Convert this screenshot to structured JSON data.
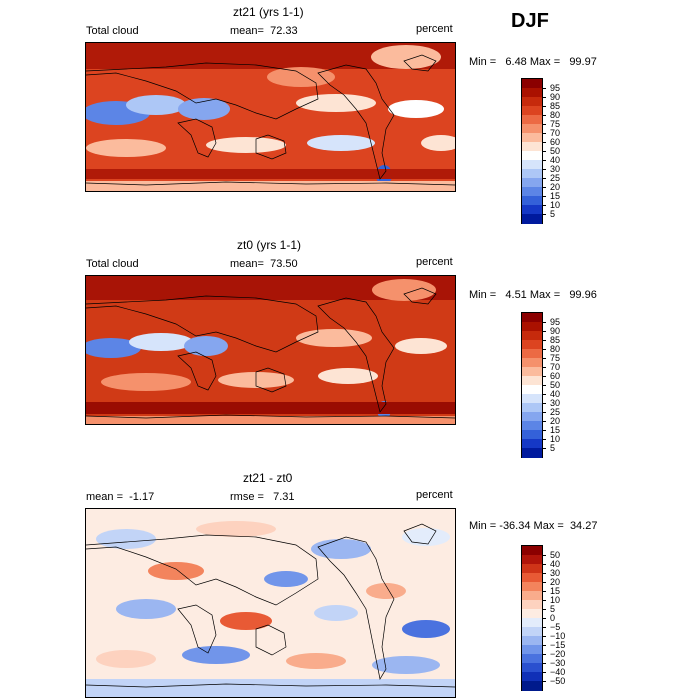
{
  "season": "DJF",
  "chart_data": [
    {
      "type": "heatmap",
      "title": "zt21 (yrs 1-1)",
      "variable": "Total cloud",
      "units": "percent",
      "mean_label": "mean=",
      "mean": "72.33",
      "min_label": "Min =",
      "min": "6.48",
      "max_label": "Max =",
      "max": "99.97",
      "colorbar": [
        "95",
        "90",
        "85",
        "80",
        "75",
        "70",
        "60",
        "50",
        "40",
        "30",
        "25",
        "20",
        "15",
        "10",
        "5"
      ]
    },
    {
      "type": "heatmap",
      "title": "zt0 (yrs 1-1)",
      "variable": "Total cloud",
      "units": "percent",
      "mean_label": "mean=",
      "mean": "73.50",
      "min_label": "Min =",
      "min": "4.51",
      "max_label": "Max =",
      "max": "99.96",
      "colorbar": [
        "95",
        "90",
        "85",
        "80",
        "75",
        "70",
        "60",
        "50",
        "40",
        "30",
        "25",
        "20",
        "15",
        "10",
        "5"
      ]
    },
    {
      "type": "heatmap",
      "title": "zt21 - zt0",
      "units": "percent",
      "mean_label": "mean =",
      "mean": "-1.17",
      "rmse_label": "rmse =",
      "rmse": "7.31",
      "min_label": "Min =",
      "min": "-36.34",
      "max_label": "Max =",
      "max": "34.27",
      "colorbar": [
        "50",
        "40",
        "30",
        "20",
        "15",
        "10",
        "5",
        "0",
        "−5",
        "−10",
        "−15",
        "−20",
        "−30",
        "−40",
        "−50"
      ]
    }
  ],
  "colors": {
    "scale": [
      "#8b0000",
      "#aa1100",
      "#c62a0c",
      "#dc4420",
      "#ec6a44",
      "#f5916c",
      "#fbbb9d",
      "#fde4d4",
      "#ffffff",
      "#d6e4fb",
      "#adc7f6",
      "#85a6ef",
      "#5c85e6",
      "#3461d9",
      "#1538c6",
      "#001a9e"
    ],
    "diff_scale": [
      "#8b0000",
      "#b0140a",
      "#cf3418",
      "#e85a35",
      "#f3845d",
      "#f9ac8c",
      "#fdd2bf",
      "#fdece2",
      "#e3ecfb",
      "#c2d4f7",
      "#9bb6f1",
      "#7195ea",
      "#4a72df",
      "#2a50cf",
      "#1030b7",
      "#001a8c"
    ]
  }
}
